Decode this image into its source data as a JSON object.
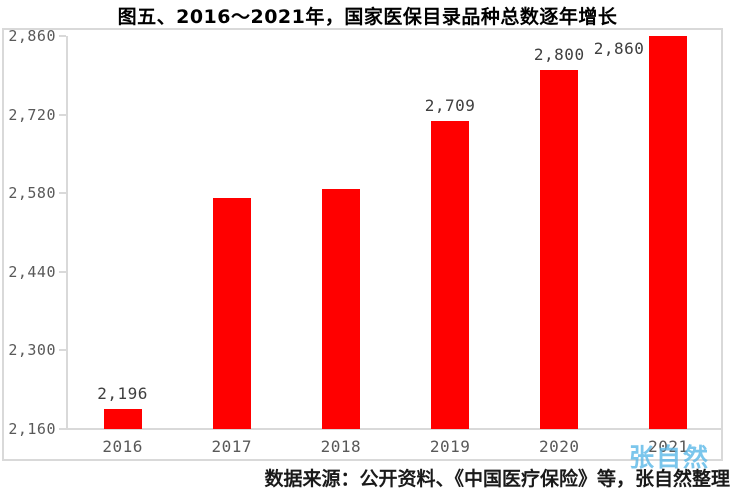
{
  "chart_data": {
    "type": "bar",
    "title": "图五、2016～2021年，国家医保目录品种总数逐年增长",
    "categories": [
      "2016",
      "2017",
      "2018",
      "2019",
      "2020",
      "2021"
    ],
    "values": [
      2196,
      2571,
      2588,
      2709,
      2800,
      2860
    ],
    "data_labels": [
      "2,196",
      null,
      null,
      "2,709",
      "2,800",
      "2,860"
    ],
    "yticks": [
      "2,860",
      "2,720",
      "2,580",
      "2,440",
      "2,300",
      "2,160"
    ],
    "ylim": [
      2160,
      2860
    ],
    "ytick_interval": 140,
    "grid": false,
    "legend": false,
    "bar_color": "#FF0000"
  },
  "source_note": "数据来源：公开资料、《中国医疗保险》等，张自然整理",
  "watermark": "张自然",
  "colors": {
    "bar": "#FF0000",
    "axis_line": "#D9D9D9",
    "frame_border": "#D9D9D9",
    "tick_label": "#595959",
    "data_label": "#3F3F3F",
    "title": "#000000",
    "watermark": "#5BB8E8",
    "source_text": "#1A1A1A"
  }
}
